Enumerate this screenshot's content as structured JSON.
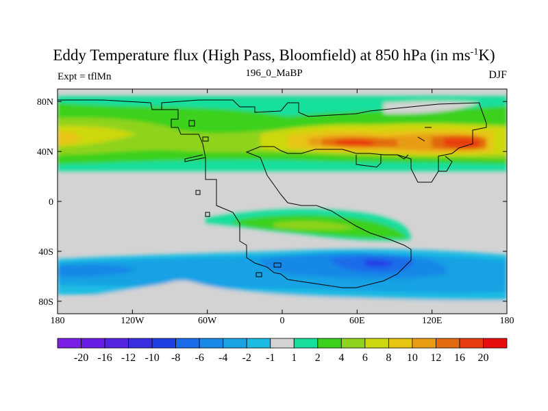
{
  "title": {
    "main": "Eddy Temperature flux (High Pass, Bloomfield) at 850 hPa (in ms",
    "sup": "-1",
    "tail": "K)"
  },
  "subtitle": "196_0_MaBP",
  "left_label": "Expt = tflMn",
  "right_label": "DJF",
  "map": {
    "lon_range": [
      -180,
      180
    ],
    "lat_range": [
      -90,
      90
    ],
    "land_color": "#d3d3d3",
    "x_ticks": [
      {
        "value": -180,
        "label": "180"
      },
      {
        "value": -120,
        "label": "120W"
      },
      {
        "value": -60,
        "label": "60W"
      },
      {
        "value": 0,
        "label": "0"
      },
      {
        "value": 60,
        "label": "60E"
      },
      {
        "value": 120,
        "label": "120E"
      },
      {
        "value": 180,
        "label": "180"
      }
    ],
    "y_ticks": [
      {
        "value": 80,
        "label": "80N"
      },
      {
        "value": 40,
        "label": "40N"
      },
      {
        "value": 0,
        "label": "0"
      },
      {
        "value": -40,
        "label": "40S"
      },
      {
        "value": -80,
        "label": "80S"
      }
    ]
  },
  "colorbar": {
    "colors": [
      "#7a1ee6",
      "#6a1de6",
      "#5524e0",
      "#3a2ee0",
      "#2040e6",
      "#1c6cea",
      "#1889e6",
      "#19a2e4",
      "#1bbbe2",
      "#d3d3d3",
      "#17de9d",
      "#3bd11a",
      "#8fd31e",
      "#cdd811",
      "#e8c413",
      "#e89c14",
      "#e26a10",
      "#e83c10",
      "#e80e0e"
    ],
    "labels": [
      "-20",
      "-16",
      "-12",
      "-10",
      "-8",
      "-6",
      "-4",
      "-2",
      "-1",
      "1",
      "2",
      "4",
      "6",
      "8",
      "10",
      "12",
      "16",
      "20"
    ]
  }
}
